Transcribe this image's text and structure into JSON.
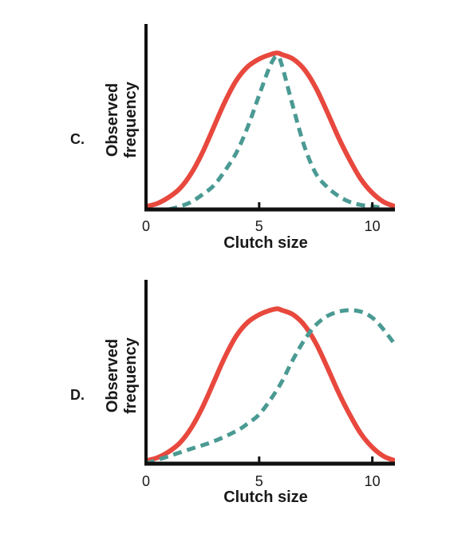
{
  "colors": {
    "observed": "#e8483d",
    "expected": "#4a9a93",
    "axis": "#111111"
  },
  "chart_data": [
    {
      "panel": "C.",
      "type": "line",
      "xlabel": "Clutch size",
      "ylabel_lines": [
        "Observed",
        "frequency"
      ],
      "xlim": [
        0,
        11
      ],
      "ylim": [
        0,
        1.1
      ],
      "xticks": [
        0,
        5,
        10
      ],
      "grid": false,
      "series": [
        {
          "style": "solid",
          "color": "#e8483d",
          "x": [
            0,
            0.5,
            1,
            1.5,
            2,
            2.5,
            3,
            3.5,
            4,
            4.5,
            5,
            5.5,
            5.8,
            6,
            6.5,
            7,
            7.5,
            8,
            8.5,
            9,
            9.5,
            10,
            10.5,
            11
          ],
          "y": [
            0.02,
            0.04,
            0.08,
            0.14,
            0.24,
            0.38,
            0.55,
            0.72,
            0.86,
            0.95,
            1.0,
            1.03,
            1.04,
            1.03,
            1.0,
            0.93,
            0.81,
            0.65,
            0.48,
            0.33,
            0.2,
            0.11,
            0.05,
            0.02
          ]
        },
        {
          "style": "dashed",
          "color": "#4a9a93",
          "x": [
            1,
            1.5,
            2,
            2.5,
            3,
            3.5,
            4,
            4.5,
            5,
            5.5,
            5.8,
            6,
            6.5,
            7,
            7.5,
            8,
            8.5,
            9,
            9.5,
            10,
            10.5
          ],
          "y": [
            0.0,
            0.02,
            0.05,
            0.1,
            0.16,
            0.26,
            0.38,
            0.55,
            0.76,
            0.96,
            1.02,
            0.96,
            0.68,
            0.42,
            0.24,
            0.15,
            0.09,
            0.05,
            0.03,
            0.02,
            0.01
          ]
        }
      ]
    },
    {
      "panel": "D.",
      "type": "line",
      "xlabel": "Clutch size",
      "ylabel_lines": [
        "Observed",
        "frequency"
      ],
      "xlim": [
        0,
        11
      ],
      "ylim": [
        0,
        1.1
      ],
      "xticks": [
        0,
        5,
        10
      ],
      "grid": false,
      "series": [
        {
          "style": "solid",
          "color": "#e8483d",
          "x": [
            0,
            0.5,
            1,
            1.5,
            2,
            2.5,
            3,
            3.5,
            4,
            4.5,
            5,
            5.5,
            5.8,
            6,
            6.5,
            7,
            7.5,
            8,
            8.5,
            9,
            9.5,
            10,
            10.5,
            11
          ],
          "y": [
            0.02,
            0.04,
            0.08,
            0.14,
            0.24,
            0.38,
            0.55,
            0.72,
            0.86,
            0.95,
            1.0,
            1.03,
            1.04,
            1.03,
            1.0,
            0.93,
            0.81,
            0.65,
            0.48,
            0.33,
            0.2,
            0.11,
            0.05,
            0.02
          ]
        },
        {
          "style": "dashed",
          "color": "#4a9a93",
          "x": [
            0,
            1,
            2,
            3,
            4,
            4.5,
            5,
            5.5,
            6,
            6.5,
            7,
            7.5,
            8,
            8.5,
            9,
            9.5,
            10,
            10.5,
            11
          ],
          "y": [
            0.0,
            0.05,
            0.1,
            0.15,
            0.22,
            0.27,
            0.33,
            0.43,
            0.55,
            0.7,
            0.83,
            0.93,
            0.99,
            1.02,
            1.03,
            1.02,
            0.98,
            0.9,
            0.8
          ]
        }
      ]
    }
  ]
}
